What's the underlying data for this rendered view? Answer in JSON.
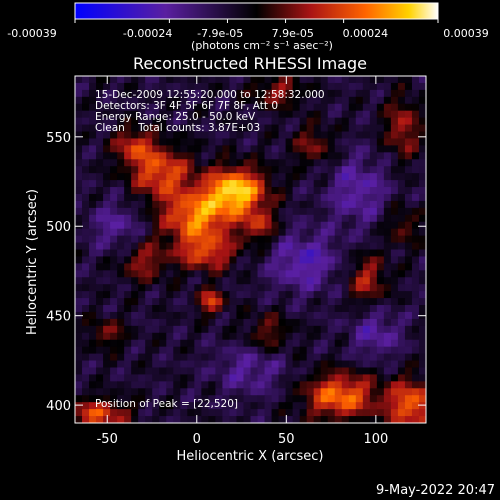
{
  "colorbar": {
    "tick_labels": [
      "-0.00039",
      "-0.00024",
      "-7.9e-05",
      "7.9e-05",
      "0.00024",
      "0.00039"
    ],
    "unit_label": "(photons cm⁻² s⁻¹ asec⁻²)"
  },
  "footer": {
    "date": "9-May-2022 20:47"
  },
  "colors": {
    "background": "#000000",
    "text": "#ffffff"
  },
  "chart_data": {
    "type": "heatmap",
    "title": "Reconstructed RHESSI Image",
    "xlabel": "Heliocentric X (arcsec)",
    "ylabel": "Heliocentric Y (arcsec)",
    "xlim": [
      -68,
      128
    ],
    "ylim": [
      390,
      584
    ],
    "x_ticks": [
      -50,
      0,
      50,
      100
    ],
    "y_ticks": [
      400,
      450,
      500,
      550
    ],
    "colorbar_range": [
      -0.00039,
      0.00039
    ],
    "annotations": [
      "15-Dec-2009 12:55:20.000 to 12:58:32.000",
      "Detectors: 3F 4F 5F 6F 7F 8F, Att 0",
      "Energy Range: 25.0 - 50.0 keV",
      "Clean    Total counts: 3.87E+03"
    ],
    "peak_label": "Position of Peak = [22,520]",
    "peak": [
      22,
      520
    ],
    "sources": [
      {
        "x": 22,
        "y": 520,
        "amp": 0.00039,
        "sx": 12,
        "sy": 9
      },
      {
        "x": 0,
        "y": 505,
        "amp": 0.00031,
        "sx": 14,
        "sy": 10
      },
      {
        "x": -20,
        "y": 530,
        "amp": 0.00026,
        "sx": 12,
        "sy": 10
      },
      {
        "x": -35,
        "y": 545,
        "amp": 0.0002,
        "sx": 8,
        "sy": 7
      },
      {
        "x": 5,
        "y": 485,
        "amp": 0.00022,
        "sx": 12,
        "sy": 7
      },
      {
        "x": 35,
        "y": 500,
        "amp": 0.00018,
        "sx": 7,
        "sy": 7
      },
      {
        "x": 8,
        "y": 458,
        "amp": 0.00024,
        "sx": 5,
        "sy": 5
      },
      {
        "x": -30,
        "y": 480,
        "amp": 0.00016,
        "sx": 9,
        "sy": 8
      },
      {
        "x": 80,
        "y": 405,
        "amp": 0.0003,
        "sx": 14,
        "sy": 9
      },
      {
        "x": 120,
        "y": 400,
        "amp": 0.00028,
        "sx": 10,
        "sy": 10
      },
      {
        "x": -55,
        "y": 395,
        "amp": 0.00024,
        "sx": 12,
        "sy": 6
      },
      {
        "x": 95,
        "y": 470,
        "amp": 0.00018,
        "sx": 8,
        "sy": 10
      },
      {
        "x": 115,
        "y": 555,
        "amp": 0.00018,
        "sx": 7,
        "sy": 12
      },
      {
        "x": 45,
        "y": 575,
        "amp": 0.00016,
        "sx": 10,
        "sy": 6
      },
      {
        "x": 65,
        "y": 545,
        "amp": 0.00014,
        "sx": 8,
        "sy": 8
      },
      {
        "x": 40,
        "y": 440,
        "amp": 0.00013,
        "sx": 9,
        "sy": 8
      },
      {
        "x": 115,
        "y": 500,
        "amp": 0.00012,
        "sx": 7,
        "sy": 8
      },
      {
        "x": -50,
        "y": 440,
        "amp": 0.00014,
        "sx": 7,
        "sy": 6
      },
      {
        "x": 60,
        "y": 480,
        "amp": -0.00016,
        "sx": 14,
        "sy": 12
      },
      {
        "x": 90,
        "y": 520,
        "amp": -0.00014,
        "sx": 12,
        "sy": 14
      },
      {
        "x": -45,
        "y": 500,
        "amp": -0.00012,
        "sx": 10,
        "sy": 10
      },
      {
        "x": 30,
        "y": 420,
        "amp": -0.00012,
        "sx": 14,
        "sy": 10
      },
      {
        "x": 100,
        "y": 440,
        "amp": -0.00013,
        "sx": 10,
        "sy": 10
      }
    ]
  }
}
